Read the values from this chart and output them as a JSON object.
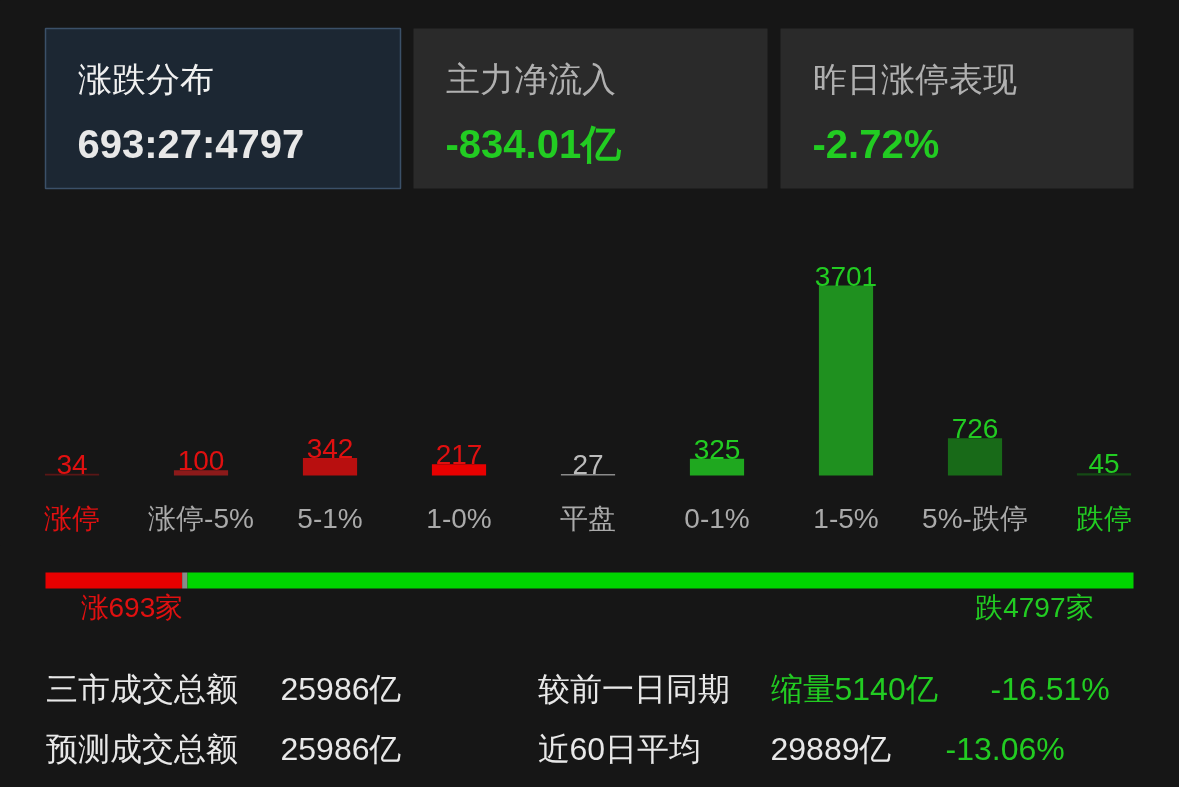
{
  "chart_data": [
    {
      "type": "other",
      "annotations": [
        "涨跌分布",
        "693:27:4797",
        "主力净流入",
        "-834.01亿",
        "昨日涨停表现",
        "-2.72%"
      ]
    },
    {
      "type": "bar",
      "categories": [
        "涨停",
        "涨停-5%",
        "5-1%",
        "1-0%",
        "平盘",
        "0-1%",
        "1-5%",
        "5%-跌停",
        "跌停"
      ],
      "values": [
        34,
        100,
        342,
        217,
        27,
        325,
        3701,
        726,
        45
      ],
      "colors": [
        "#5a1616",
        "#8c1a1a",
        "#b80f0f",
        "#e80000",
        "#8a8a8a",
        "#1fa81f",
        "#1f901f",
        "#186a18",
        "#154a15"
      ],
      "data_labels": true,
      "tick_labels": "x"
    },
    {
      "type": "bar",
      "orientation": "horizontal",
      "stacked": true,
      "categories": [
        null
      ],
      "tick_labels": false,
      "series": [
        {
          "color": "#e80000",
          "values": [
            693
          ],
          "value_labels": [
            "涨693家"
          ]
        },
        {
          "color": "#8a8a8a",
          "values": [
            27
          ],
          "value_labels": [
            null
          ]
        },
        {
          "color": "#00d400",
          "values": [
            4797
          ],
          "value_labels": [
            "跌4797家"
          ]
        }
      ]
    },
    {
      "type": "other",
      "annotations": [
        "三市成交总额",
        "25986亿",
        "较前一日同期",
        "缩量5140亿",
        "-16.51%",
        "预测成交总额",
        "25986亿",
        "近60日平均",
        "29889亿",
        "-13.06%"
      ]
    }
  ]
}
